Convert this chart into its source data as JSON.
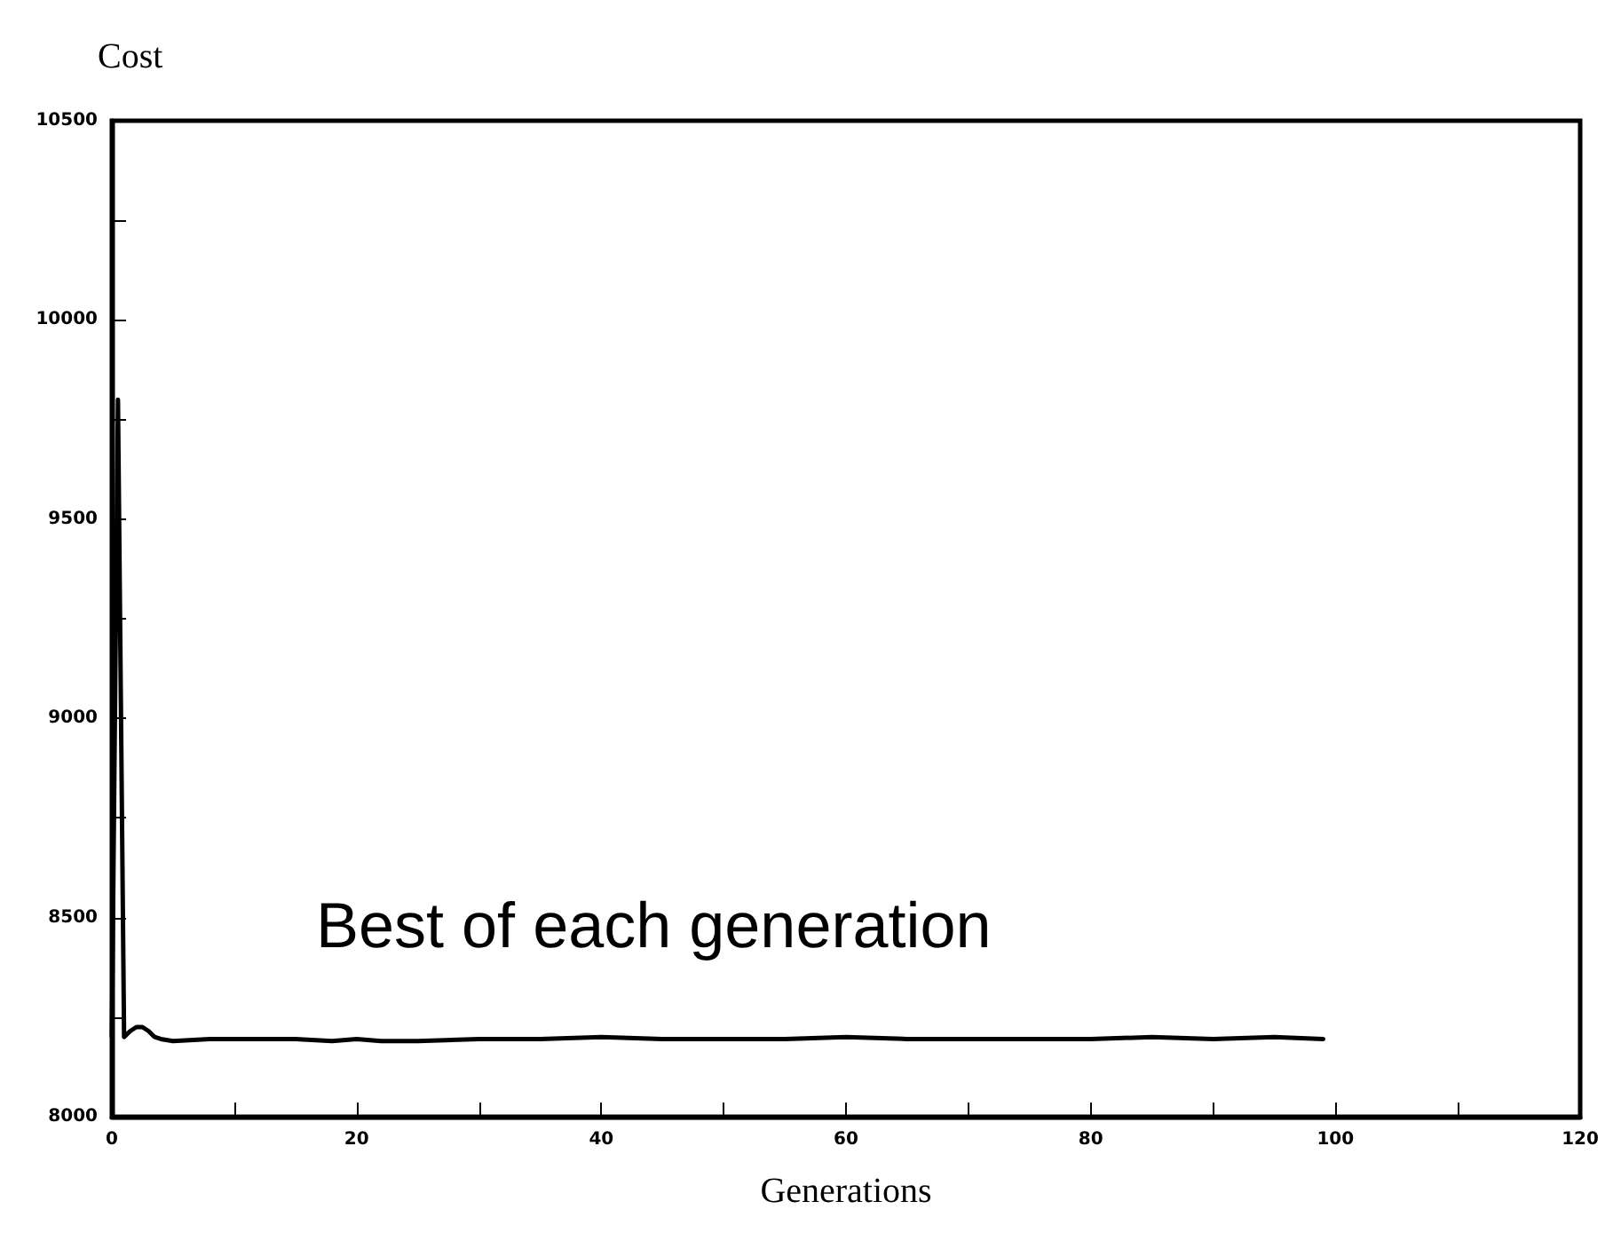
{
  "chart_data": {
    "type": "line",
    "xlabel": "Generations",
    "ylabel": "Cost",
    "annotations": [
      "Best of each generation"
    ],
    "x": [
      0,
      0.5,
      1,
      1.5,
      2,
      2.5,
      3,
      3.5,
      4,
      5,
      8,
      12,
      15,
      18,
      20,
      22,
      25,
      30,
      35,
      40,
      45,
      50,
      55,
      60,
      65,
      70,
      75,
      80,
      85,
      90,
      95,
      99
    ],
    "series": [
      {
        "color": "#000000",
        "values": [
          8200,
          9800,
          8200,
          8215,
          8225,
          8225,
          8215,
          8200,
          8195,
          8190,
          8195,
          8195,
          8195,
          8190,
          8195,
          8190,
          8190,
          8195,
          8195,
          8200,
          8195,
          8195,
          8195,
          8200,
          8195,
          8195,
          8195,
          8195,
          8200,
          8195,
          8200,
          8195
        ]
      }
    ],
    "xlim": [
      0,
      120
    ],
    "xticks": [
      0,
      {
        "value": 10,
        "label": null
      },
      20,
      {
        "value": 30,
        "label": null
      },
      40,
      {
        "value": 50,
        "label": null
      },
      60,
      {
        "value": 70,
        "label": null
      },
      80,
      {
        "value": 90,
        "label": null
      },
      100,
      {
        "value": 110,
        "label": null
      },
      120
    ],
    "ylim": [
      8000,
      10500
    ],
    "yticks": [
      8000,
      {
        "value": 8250,
        "label": null
      },
      8500,
      {
        "value": 8750,
        "label": null
      },
      9000,
      {
        "value": 9250,
        "label": null
      },
      9500,
      {
        "value": 9750,
        "label": null
      },
      10000,
      {
        "value": 10250,
        "label": null
      },
      10500
    ],
    "grid": false,
    "marker": "none",
    "line_style": "solid"
  }
}
